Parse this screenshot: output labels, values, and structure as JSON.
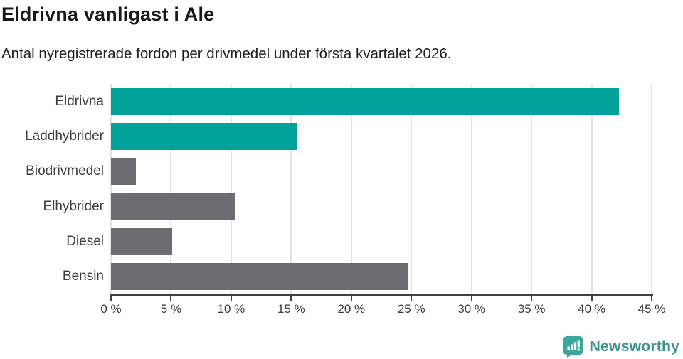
{
  "header": {
    "title": "Eldrivna vanligast i Ale",
    "subtitle": "Antal nyregistrerade fordon per drivmedel under första kvartalet 2026."
  },
  "chart_data": {
    "type": "bar",
    "orientation": "horizontal",
    "title": "Eldrivna vanligast i Ale",
    "subtitle": "Antal nyregistrerade fordon per drivmedel under första kvartalet 2026.",
    "categories": [
      "Eldrivna",
      "Laddhybrider",
      "Biodrivmedel",
      "Elhybrider",
      "Diesel",
      "Bensin"
    ],
    "values": [
      42.3,
      15.5,
      2.1,
      10.3,
      5.1,
      24.7
    ],
    "unit": "%",
    "xlabel": "",
    "ylabel": "",
    "xlim": [
      0,
      45
    ],
    "x_ticks": [
      0,
      5,
      10,
      15,
      20,
      25,
      30,
      35,
      40,
      45
    ],
    "x_tick_labels": [
      "0 %",
      "5 %",
      "10 %",
      "15 %",
      "20 %",
      "25 %",
      "30 %",
      "35 %",
      "40 %",
      "45 %"
    ],
    "bar_colors": [
      "#00a29a",
      "#00a29a",
      "#6d6d71",
      "#6d6d71",
      "#6d6d71",
      "#6d6d71"
    ],
    "grid": true,
    "legend": false
  },
  "colors": {
    "teal": "#00a29a",
    "gray": "#6d6d71",
    "gridline": "#e3e3e3",
    "axis": "#404040",
    "label_text": "#3c3c3c",
    "brand": "#3f948c"
  },
  "footer": {
    "brand": "Newsworthy",
    "logo_icon": "newsworthy-speech-bubble-bar-chart-icon"
  }
}
